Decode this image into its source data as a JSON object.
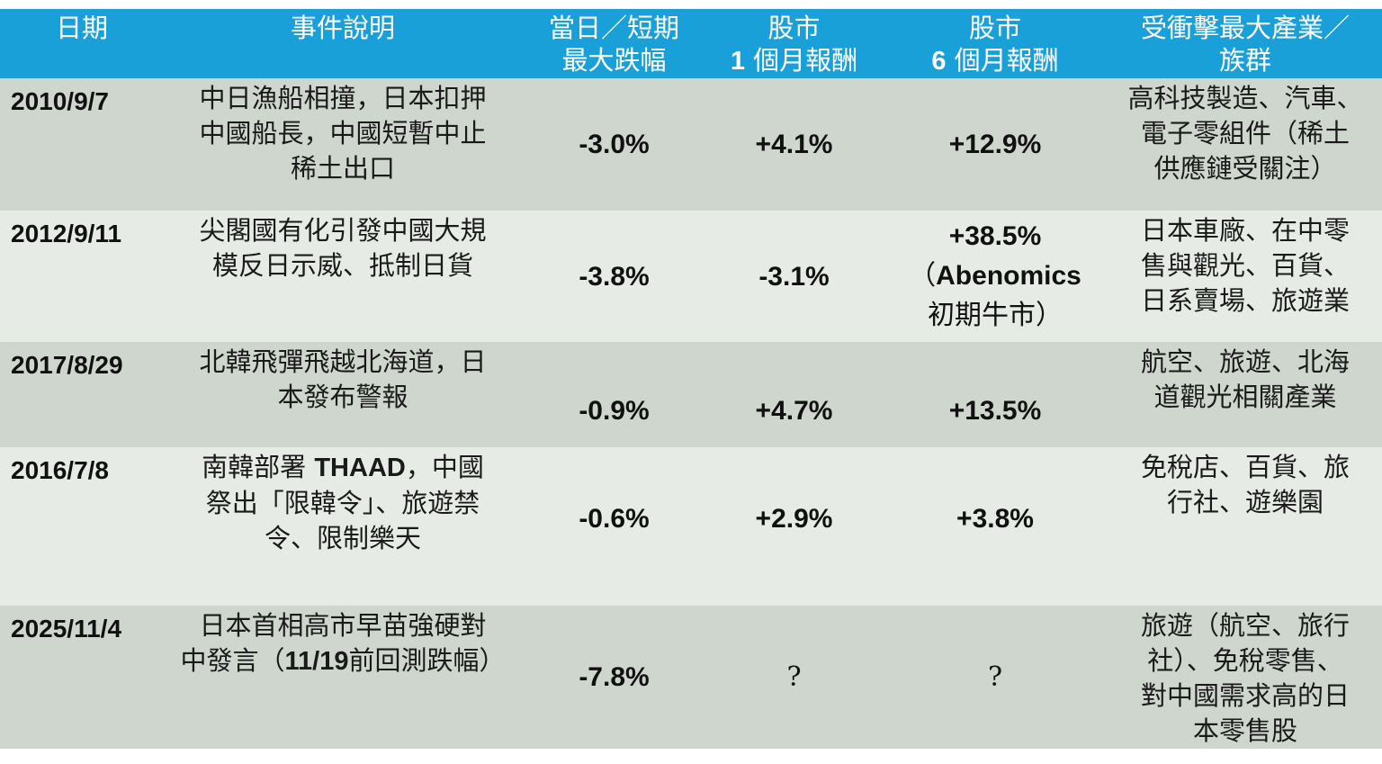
{
  "header": {
    "date": "日期",
    "event": "事件說明",
    "drop_line1": "當日／短期",
    "drop_line2": "最大跌幅",
    "m1_line1": "股市",
    "m1_num": "1",
    "m1_line2": " 個月報酬",
    "m6_line1": "股市",
    "m6_num": "6",
    "m6_line2": " 個月報酬",
    "ind_line1": "受衝擊最大產業／",
    "ind_line2": "族群"
  },
  "rows": [
    {
      "date": "2010/9/7",
      "event_lines": [
        "中日漁船相撞，日本扣押",
        "中國船長，中國短暫中止",
        "稀土出口"
      ],
      "drop": "-3.0%",
      "m1": "+4.1%",
      "m6": "+12.9%",
      "industry_lines": [
        "高科技製造、汽車、",
        "電子零組件（稀土",
        "供應鏈受關注）"
      ]
    },
    {
      "date": "2012/9/11",
      "event_lines": [
        "尖閣國有化引發中國大規",
        "模反日示威、抵制日貨"
      ],
      "drop": "-3.8%",
      "m1": "-3.1%",
      "m6_value": "+38.5%",
      "m6_note_open": "（",
      "m6_note_bold": "Abenomics",
      "m6_note_line2": "初期牛市）",
      "industry_lines": [
        "日本車廠、在中零",
        "售與觀光、百貨、",
        "日系賣場、旅遊業"
      ]
    },
    {
      "date": "2017/8/29",
      "event_lines": [
        "北韓飛彈飛越北海道，日",
        "本發布警報"
      ],
      "drop": "-0.9%",
      "m1": "+4.7%",
      "m6": "+13.5%",
      "industry_lines": [
        "航空、旅遊、北海",
        "道觀光相關產業"
      ]
    },
    {
      "date": "2016/7/8",
      "event_line1_pre": "南韓部署 ",
      "event_line1_bold": "THAAD",
      "event_line1_post": "，中國",
      "event_line2": "祭出「限韓令」、旅遊禁",
      "event_line3": "令、限制樂天",
      "drop": "-0.6%",
      "m1": "+2.9%",
      "m6": "+3.8%",
      "industry_lines": [
        "免稅店、百貨、旅",
        "行社、遊樂園"
      ]
    },
    {
      "date": "2025/11/4",
      "event_line1": "日本首相高市早苗強硬對",
      "event_line2_pre": "中發言（",
      "event_line2_bold": "11/19",
      "event_line2_post": "前回測跌幅）",
      "drop": "-7.8%",
      "m1": "?",
      "m6": "?",
      "industry_lines": [
        "旅遊（航空、旅行",
        "社）、免稅零售、",
        "對中國需求高的日",
        "本零售股"
      ]
    }
  ]
}
